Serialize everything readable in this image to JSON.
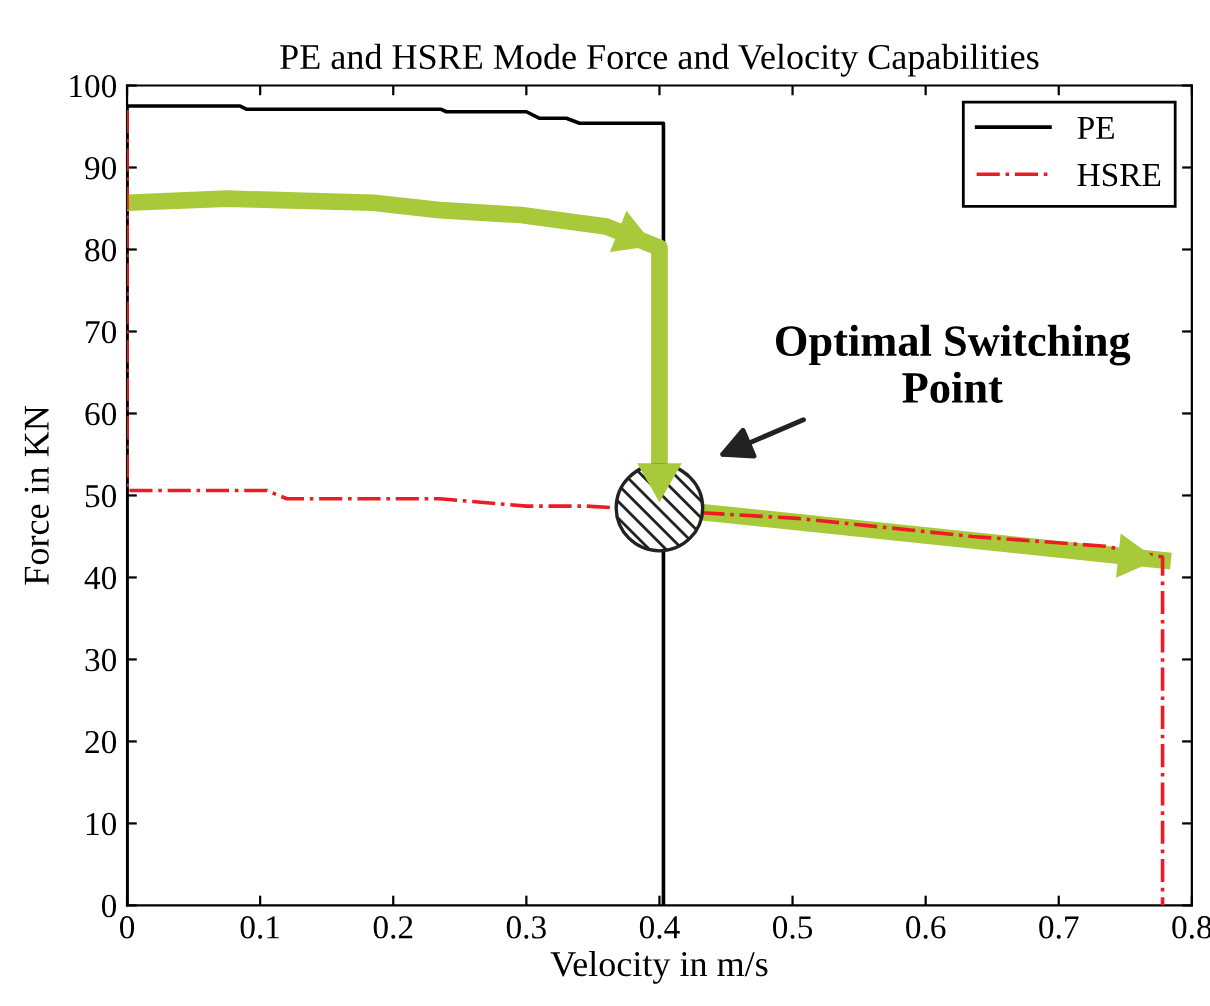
{
  "chart_data": {
    "type": "line",
    "title": "PE and HSRE Mode Force and Velocity Capabilities",
    "xlabel": "Velocity in m/s",
    "ylabel": "Force in KN",
    "xlim": [
      0,
      0.8
    ],
    "ylim": [
      0,
      100
    ],
    "xticks": [
      0,
      0.1,
      0.2,
      0.3,
      0.4,
      0.5,
      0.6,
      0.7,
      0.8
    ],
    "yticks": [
      0,
      10,
      20,
      30,
      40,
      50,
      60,
      70,
      80,
      90,
      100
    ],
    "grid": false,
    "legend": "top right",
    "marker": "none",
    "series": [
      {
        "name": "PE",
        "color": "#000000",
        "line_style": "solid",
        "x": [
          0,
          0,
          0.085,
          0.09,
          0.236,
          0.24,
          0.3,
          0.31,
          0.33,
          0.34,
          0.403,
          0.403
        ],
        "values": [
          0,
          97.5,
          97.5,
          97.1,
          97.1,
          96.8,
          96.8,
          96,
          96,
          95.4,
          95.4,
          0
        ]
      },
      {
        "name": "HSRE",
        "color": "#ed1c24",
        "line_style": "dashdot",
        "x": [
          0,
          0,
          0.105,
          0.12,
          0.235,
          0.3,
          0.345,
          0.504,
          0.635,
          0.735,
          0.778,
          0.778
        ],
        "values": [
          97,
          50.6,
          50.6,
          49.6,
          49.6,
          48.7,
          48.7,
          47.2,
          45,
          43.8,
          42.5,
          0
        ]
      },
      {
        "color": "#a8c93a",
        "line_style": "solid",
        "x": [
          0,
          0.075,
          0.185,
          0.235,
          0.296,
          0.36,
          0.4,
          0.4,
          0.778
        ],
        "values": [
          85.7,
          86.2,
          85.7,
          84.8,
          84.2,
          82.8,
          80.2,
          48.5,
          42.1
        ]
      }
    ],
    "annotations": [
      "Optimal Switching\nPoint"
    ]
  }
}
